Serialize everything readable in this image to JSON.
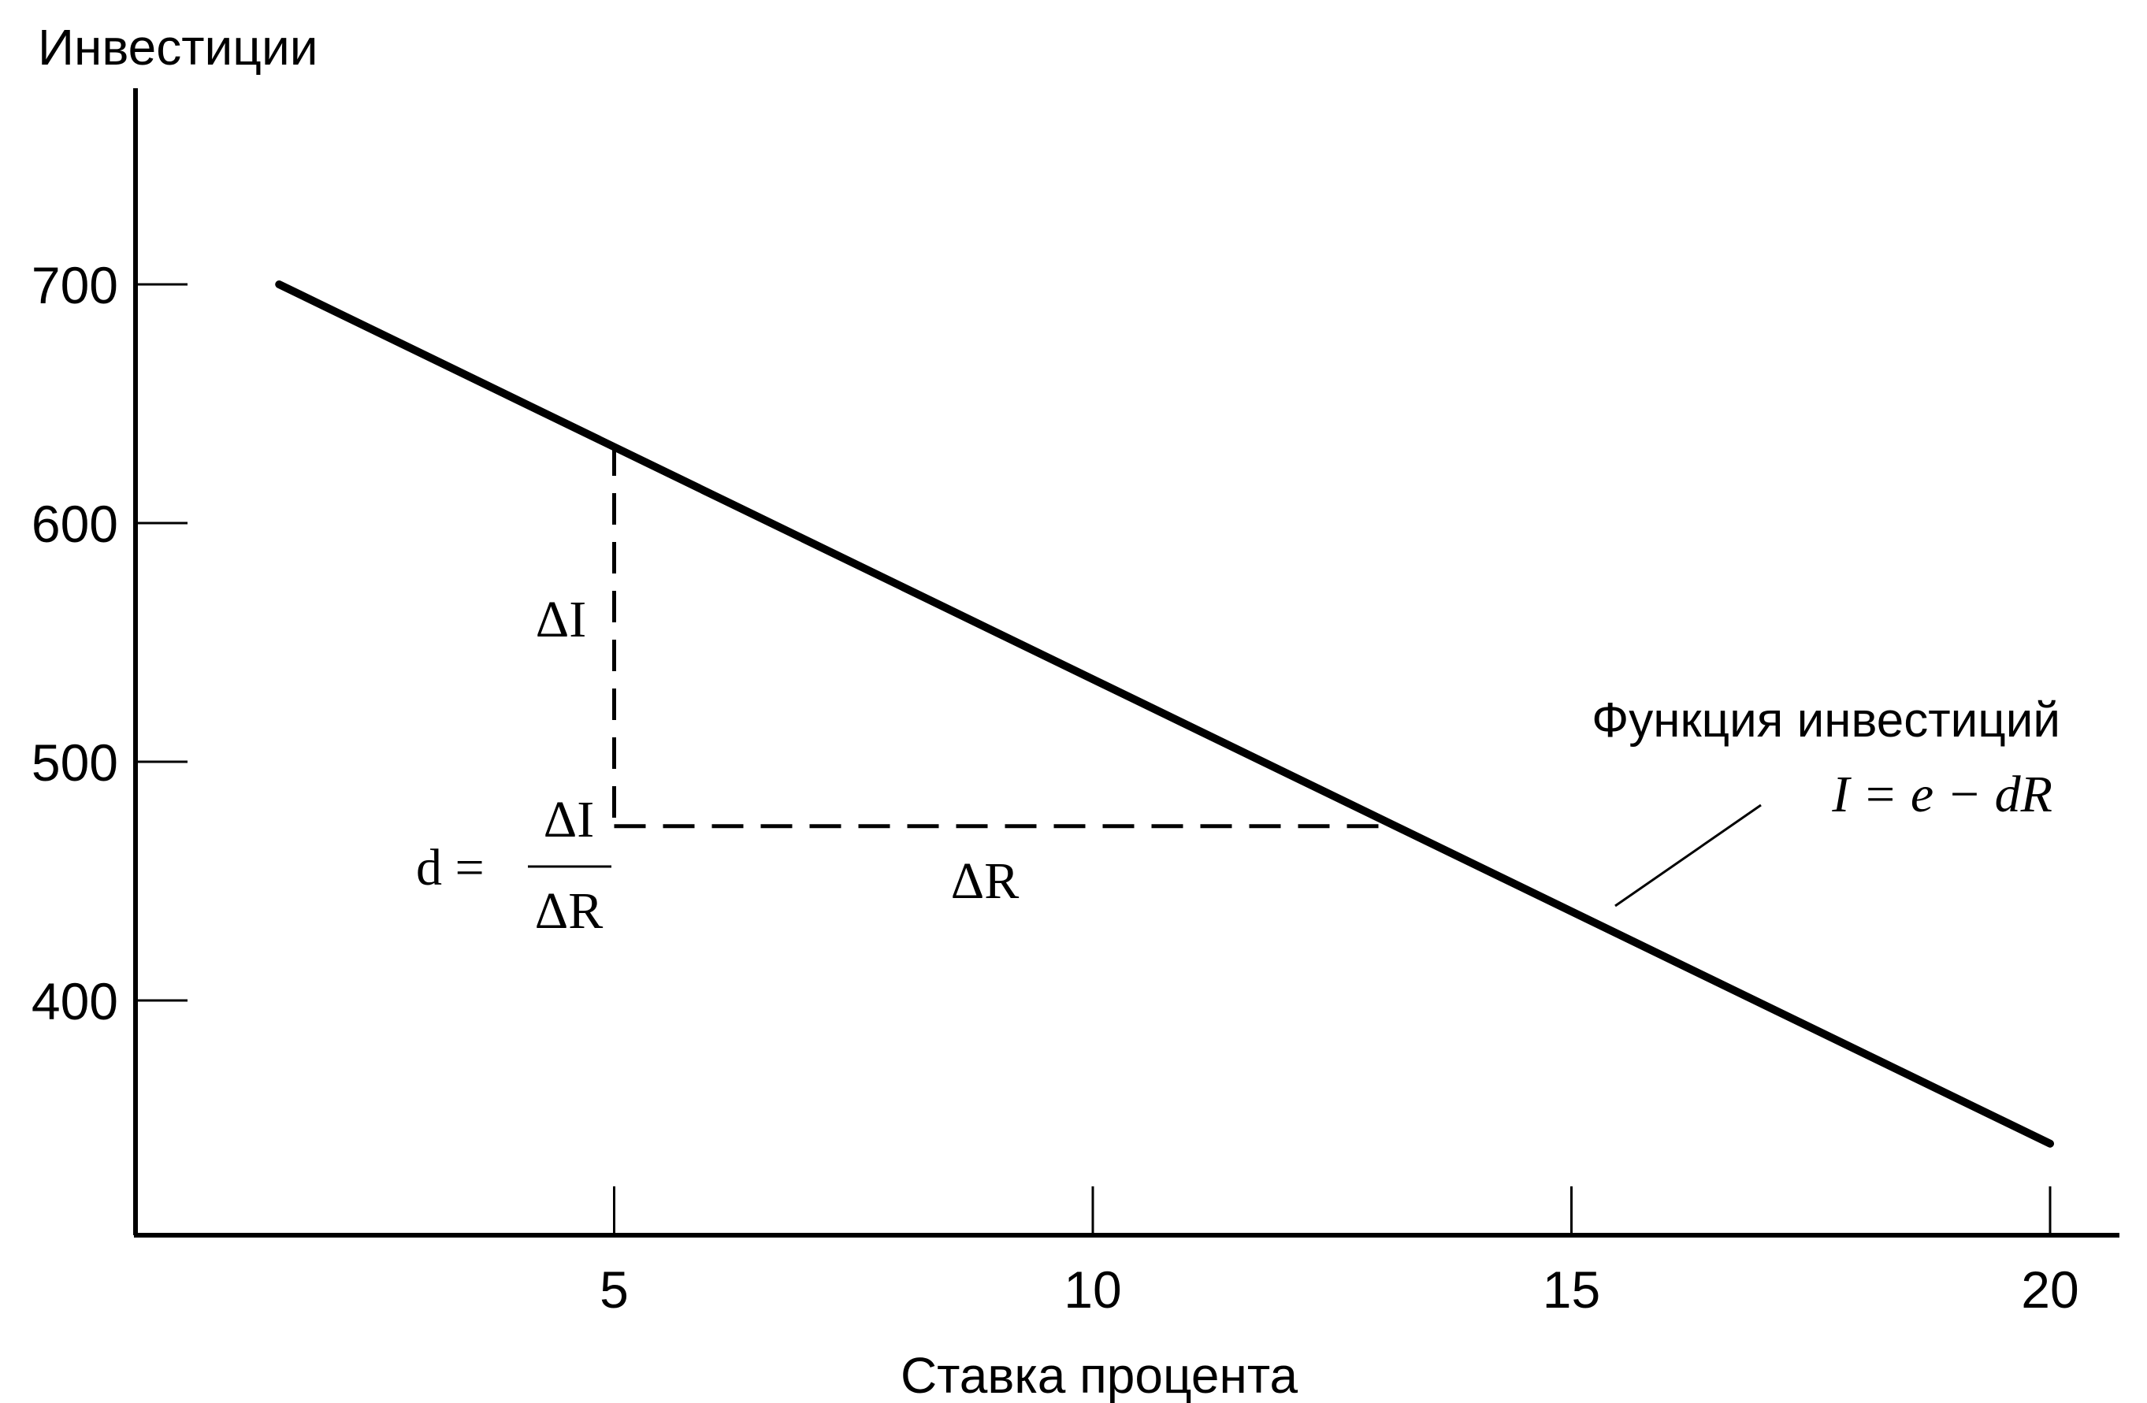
{
  "chart_data": {
    "type": "line",
    "ylabel": "Инвестиции",
    "xlabel": "Ставка процента",
    "xlim": [
      0,
      21
    ],
    "ylim": [
      300,
      770
    ],
    "x_ticks": [
      5,
      10,
      15,
      20
    ],
    "x_tick_labels": [
      "5",
      "10",
      "15",
      "20"
    ],
    "y_ticks": [
      400,
      500,
      600,
      700
    ],
    "y_tick_labels": [
      "400",
      "500",
      "600",
      "700"
    ],
    "grid": false,
    "series": [
      {
        "name": "Функция инвестиций",
        "x": [
          1.5,
          20
        ],
        "y": [
          700,
          340
        ]
      }
    ],
    "annotations": {
      "function_label": "Функция инвестиций",
      "equation": "I = e − dR",
      "delta_i_label": "ΔI",
      "delta_r_label": "ΔR",
      "slope_formula": {
        "lhs": "d =",
        "numerator": "ΔI",
        "denominator": "ΔR"
      },
      "slope_triangle": {
        "x_start": 5,
        "x_end": 13.2,
        "y_top": 633,
        "y_bottom": 473
      }
    },
    "colors": {
      "line": "#000000",
      "axis": "#000000"
    }
  }
}
